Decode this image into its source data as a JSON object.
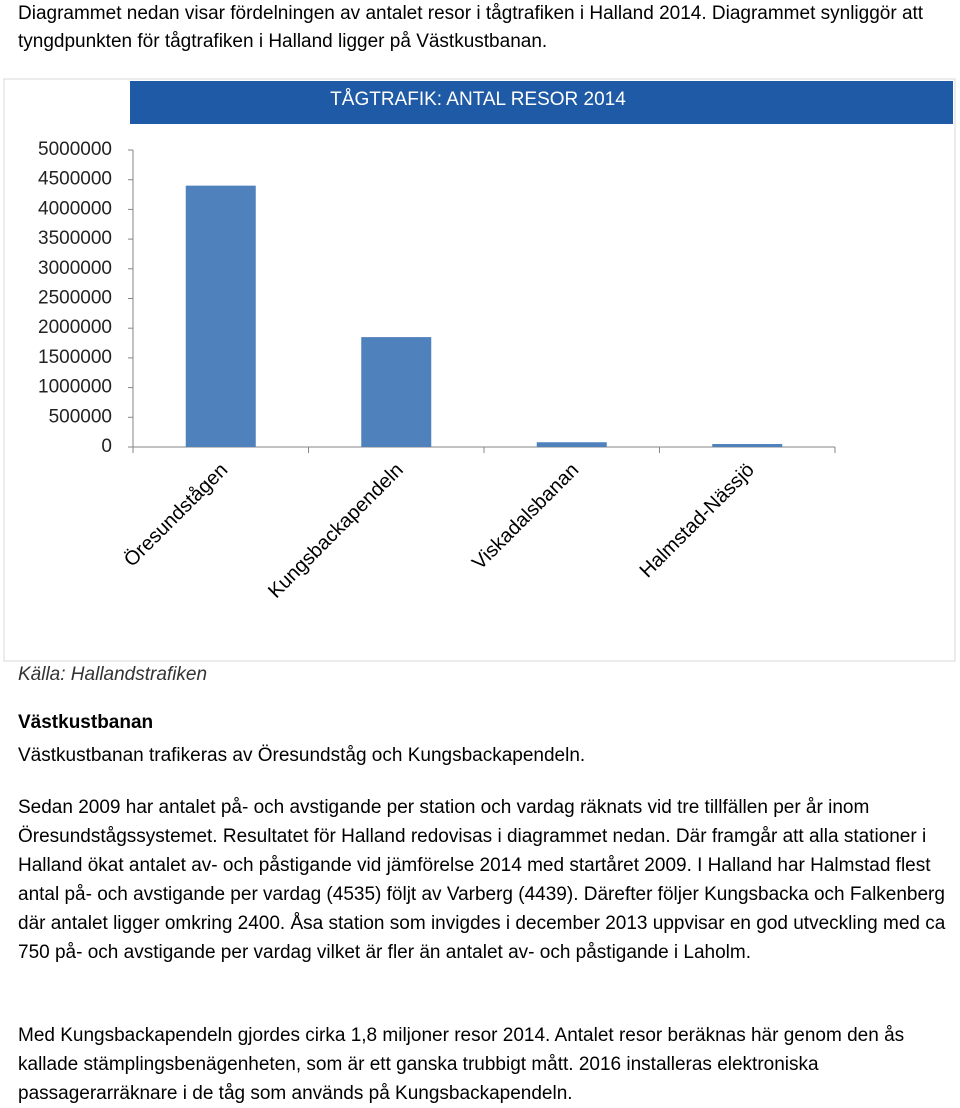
{
  "intro": "Diagrammet nedan visar fördelningen av antalet resor i tågtrafiken i Halland 2014. Diagrammet synliggör att tyngdpunkten för tågtrafiken i Halland ligger på Västkustbanan.",
  "chart_data": {
    "type": "bar",
    "title": "TÅGTRAFIK: ANTAL RESOR 2014",
    "categories": [
      "Öresundstågen",
      "Kungsbackapendeln",
      "Viskadalsbanan",
      "Halmstad-Nässjö"
    ],
    "values": [
      4400000,
      1850000,
      80000,
      50000
    ],
    "color": "#4f81bd",
    "title_band_color": "#1f5aa6",
    "ylim": [
      0,
      5000000
    ],
    "yticks": [
      0,
      500000,
      1000000,
      1500000,
      2000000,
      2500000,
      3000000,
      3500000,
      4000000,
      4500000,
      5000000
    ],
    "grid": false
  },
  "source": "Källa: Hallandstrafiken",
  "section": {
    "heading": "Västkustbanan",
    "paragraphs": [
      "Västkustbanan trafikeras av Öresundståg och Kungsbackapendeln.",
      "Sedan 2009 har antalet på- och avstigande per station och vardag räknats vid tre tillfällen per år inom Öresundstågssystemet. Resultatet för Halland redovisas i diagrammet nedan. Där framgår att alla stationer i Halland ökat antalet av- och påstigande vid jämförelse 2014 med startåret 2009. I Halland har Halmstad flest antal på- och avstigande per vardag (4535) följt av Varberg (4439). Därefter följer Kungsbacka och Falkenberg där antalet ligger omkring 2400. Åsa station som invigdes i december 2013 uppvisar en god utveckling med ca 750 på- och avstigande per vardag vilket är fler än antalet av- och påstigande i Laholm.",
      "Med Kungsbackapendeln gjordes cirka 1,8 miljoner resor 2014. Antalet resor beräknas här genom den ås kallade stämplingsbenägenheten, som är ett ganska trubbigt mått. 2016 installeras elektroniska passagerarräknare i de tåg som används på Kungsbackapendeln."
    ]
  }
}
